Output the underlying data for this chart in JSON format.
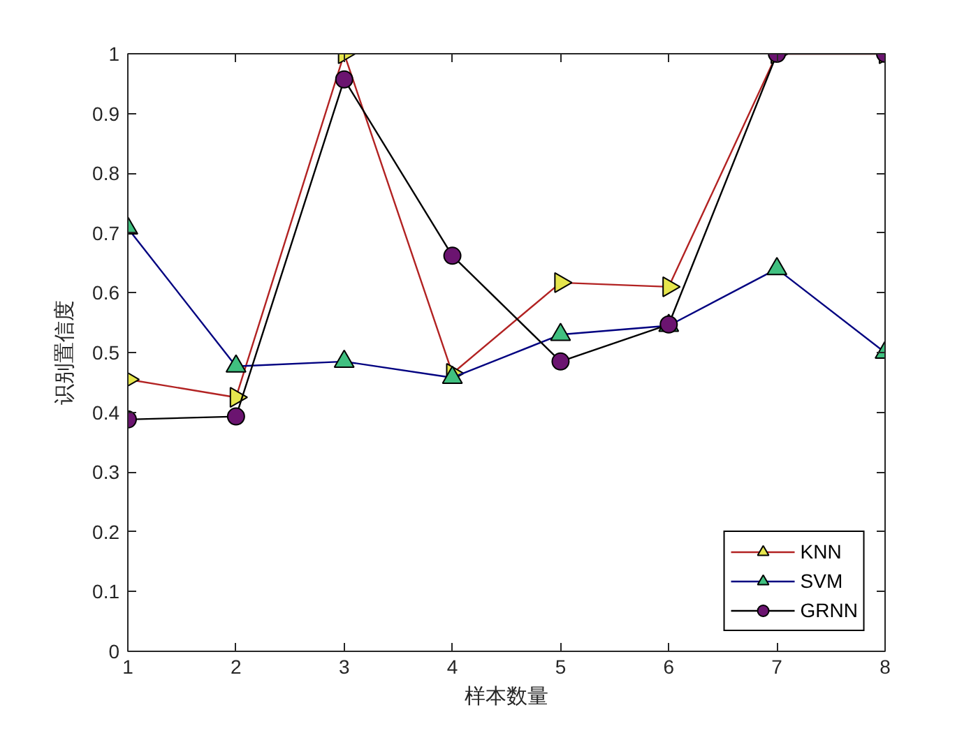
{
  "chart_data": {
    "type": "line",
    "xlabel": "样本数量",
    "ylabel": "识别置信度",
    "x": [
      1,
      2,
      3,
      4,
      5,
      6,
      7,
      8
    ],
    "xlim": [
      1,
      8
    ],
    "xticks": [
      1,
      2,
      3,
      4,
      5,
      6,
      7,
      8
    ],
    "ylim": [
      0,
      1
    ],
    "yticks": [
      0,
      0.1,
      0.2,
      0.3,
      0.4,
      0.5,
      0.6,
      0.7,
      0.8,
      0.9,
      1
    ],
    "grid": false,
    "legend": "bottom right",
    "series": [
      {
        "name": "KNN",
        "marker": "triangle-right",
        "color": "#b22222",
        "colors": [
          "#e6e64d",
          "#e6e64d",
          "#e6e64d",
          "#e6e64d",
          "#e6e64d",
          "#e6e64d",
          "#e6e64d",
          "#e6e64d"
        ],
        "values": [
          0.455,
          0.425,
          1.0,
          0.465,
          0.617,
          0.61,
          1.0,
          1.0
        ]
      },
      {
        "name": "SVM",
        "marker": "triangle",
        "color": "#000080",
        "colors": [
          "#40c080",
          "#40c080",
          "#40c080",
          "#40c080",
          "#40c080",
          "#40c080",
          "#40c080",
          "#40c080"
        ],
        "values": [
          0.708,
          0.477,
          0.485,
          0.458,
          0.53,
          0.545,
          0.64,
          0.5
        ]
      },
      {
        "name": "GRNN",
        "marker": "circle",
        "color": "#000000",
        "colors": [
          "#6b1470",
          "#6b1470",
          "#6b1470",
          "#6b1470",
          "#6b1470",
          "#6b1470",
          "#6b1470",
          "#6b1470"
        ],
        "values": [
          0.388,
          0.393,
          0.957,
          0.662,
          0.485,
          0.547,
          1.0,
          1.0
        ]
      }
    ]
  }
}
